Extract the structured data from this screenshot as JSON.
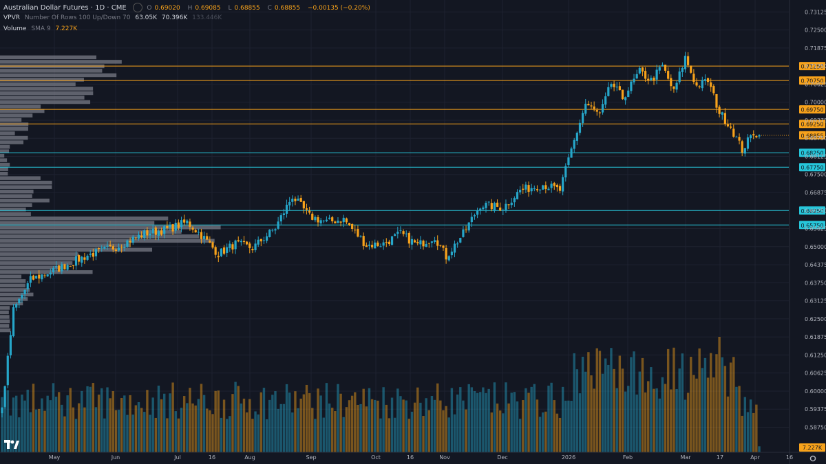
{
  "legend": {
    "symbol": "Australian Dollar Futures · 1D · CME",
    "o_label": "O",
    "o": "0.69020",
    "h_label": "H",
    "h": "0.69085",
    "l_label": "L",
    "l": "0.68855",
    "c_label": "C",
    "c": "0.68855",
    "change": "−0.00135 (−0.20%)",
    "vpvr_name": "VPVR",
    "vpvr_params": "Number Of Rows 100 Up/Down 70",
    "vpvr_v1": "63.05K",
    "vpvr_v2": "70.396K",
    "vpvr_v3": "133.446K",
    "vol_name": "Volume",
    "vol_params": "SMA 9",
    "vol_value": "7.227K"
  },
  "colors": {
    "background": "#131722",
    "up": "#26a6c9",
    "down": "#f7a21b",
    "grid": "#1e2230",
    "axis_text": "#b2b5be",
    "profile": "#787b86",
    "price_tag": "#f7a21b",
    "cyan_tag": "#26c6da"
  },
  "price_axis": {
    "ticks": [
      "0.73125",
      "0.72500",
      "0.71875",
      "0.71250",
      "0.70625",
      "0.70000",
      "0.69375",
      "0.68750",
      "0.68125",
      "0.67500",
      "0.66875",
      "0.66250",
      "0.65625",
      "0.65000",
      "0.64375",
      "0.63750",
      "0.63125",
      "0.62500",
      "0.61875",
      "0.61250",
      "0.60625",
      "0.60000",
      "0.59375",
      "0.58750"
    ],
    "values": [
      0.73125,
      0.725,
      0.71875,
      0.7125,
      0.70625,
      0.7,
      0.69375,
      0.6875,
      0.68125,
      0.675,
      0.66875,
      0.6625,
      0.65625,
      0.65,
      0.64375,
      0.6375,
      0.63125,
      0.625,
      0.61875,
      0.6125,
      0.60625,
      0.6,
      0.59375,
      0.5875
    ],
    "range": [
      0.58,
      0.7349
    ]
  },
  "levels": [
    {
      "price": 0.7125,
      "label": "0.71250",
      "color": "#f7a21b"
    },
    {
      "price": 0.7075,
      "label": "0.70750",
      "color": "#f7a21b"
    },
    {
      "price": 0.6975,
      "label": "0.69750",
      "color": "#f7a21b"
    },
    {
      "price": 0.6925,
      "label": "0.69250",
      "color": "#f7a21b"
    },
    {
      "price": 0.6825,
      "label": "0.68250",
      "color": "#26c6da"
    },
    {
      "price": 0.6775,
      "label": "0.67750",
      "color": "#26c6da"
    },
    {
      "price": 0.6625,
      "label": "0.66250",
      "color": "#26c6da"
    },
    {
      "price": 0.6575,
      "label": "0.65750",
      "color": "#26c6da"
    }
  ],
  "current_price": {
    "price": 0.68855,
    "label": "0.68855"
  },
  "volume_tag": "7.227K",
  "time_axis": {
    "labels": [
      "May",
      "Jun",
      "Jul",
      "16",
      "Aug",
      "Sep",
      "Oct",
      "16",
      "Nov",
      "Dec",
      "2026",
      "Feb",
      "Mar",
      "17",
      "Apr",
      "16"
    ]
  },
  "chart_data": {
    "type": "candlestick",
    "title": "Australian Dollar Futures · 1D · CME",
    "series": [
      {
        "name": "Australian Dollar Futures",
        "ohlc": []
      }
    ],
    "anchors": [
      {
        "t": 0,
        "p": 0.594
      },
      {
        "t": 4,
        "p": 0.628
      },
      {
        "t": 10,
        "p": 0.6385
      },
      {
        "t": 20,
        "p": 0.6425
      },
      {
        "t": 30,
        "p": 0.647
      },
      {
        "t": 40,
        "p": 0.65
      },
      {
        "t": 50,
        "p": 0.6545
      },
      {
        "t": 58,
        "p": 0.656
      },
      {
        "t": 65,
        "p": 0.6585
      },
      {
        "t": 70,
        "p": 0.654
      },
      {
        "t": 76,
        "p": 0.6475
      },
      {
        "t": 82,
        "p": 0.651
      },
      {
        "t": 88,
        "p": 0.6495
      },
      {
        "t": 96,
        "p": 0.6565
      },
      {
        "t": 102,
        "p": 0.6675
      },
      {
        "t": 108,
        "p": 0.6605
      },
      {
        "t": 114,
        "p": 0.6585
      },
      {
        "t": 120,
        "p": 0.6595
      },
      {
        "t": 128,
        "p": 0.6505
      },
      {
        "t": 134,
        "p": 0.651
      },
      {
        "t": 140,
        "p": 0.6545
      },
      {
        "t": 146,
        "p": 0.6505
      },
      {
        "t": 152,
        "p": 0.6535
      },
      {
        "t": 156,
        "p": 0.6465
      },
      {
        "t": 162,
        "p": 0.6545
      },
      {
        "t": 168,
        "p": 0.6645
      },
      {
        "t": 176,
        "p": 0.6635
      },
      {
        "t": 182,
        "p": 0.6695
      },
      {
        "t": 190,
        "p": 0.6715
      },
      {
        "t": 196,
        "p": 0.6695
      },
      {
        "t": 200,
        "p": 0.6835
      },
      {
        "t": 205,
        "p": 0.6995
      },
      {
        "t": 210,
        "p": 0.6955
      },
      {
        "t": 214,
        "p": 0.7065
      },
      {
        "t": 218,
        "p": 0.7015
      },
      {
        "t": 224,
        "p": 0.7105
      },
      {
        "t": 228,
        "p": 0.7075
      },
      {
        "t": 232,
        "p": 0.7125
      },
      {
        "t": 236,
        "p": 0.7035
      },
      {
        "t": 240,
        "p": 0.7155
      },
      {
        "t": 244,
        "p": 0.7055
      },
      {
        "t": 248,
        "p": 0.7075
      },
      {
        "t": 252,
        "p": 0.6965
      },
      {
        "t": 256,
        "p": 0.6915
      },
      {
        "t": 260,
        "p": 0.6835
      },
      {
        "t": 264,
        "p": 0.6895
      },
      {
        "t": 266,
        "p": 0.68855
      }
    ],
    "volume_max": 7.7
  }
}
